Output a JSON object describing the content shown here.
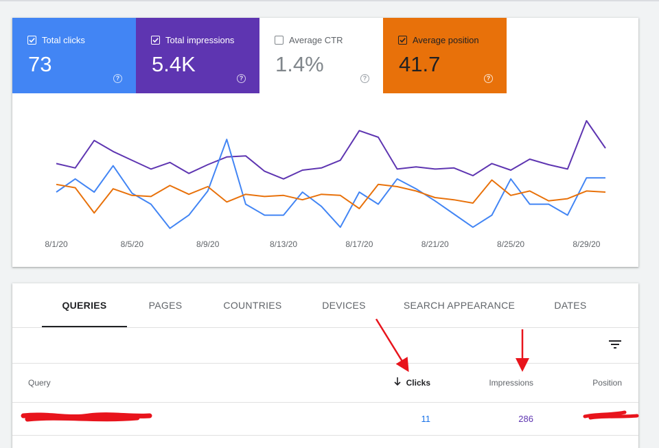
{
  "metrics": [
    {
      "id": "clicks",
      "label": "Total clicks",
      "value": "73",
      "checked": true,
      "color": "#4285f4"
    },
    {
      "id": "impr",
      "label": "Total impressions",
      "value": "5.4K",
      "checked": true,
      "color": "#5e35b1"
    },
    {
      "id": "ctr",
      "label": "Average CTR",
      "value": "1.4%",
      "checked": false,
      "color": "#ffffff"
    },
    {
      "id": "pos",
      "label": "Average position",
      "value": "41.7",
      "checked": true,
      "color": "#e8710a"
    }
  ],
  "help_glyph": "?",
  "chart_data": {
    "type": "line",
    "x_tick_labels": [
      "8/1/20",
      "8/5/20",
      "8/9/20",
      "8/13/20",
      "8/17/20",
      "8/21/20",
      "8/25/20",
      "8/29/20"
    ],
    "x": [
      "8/1",
      "8/2",
      "8/3",
      "8/4",
      "8/5",
      "8/6",
      "8/7",
      "8/8",
      "8/9",
      "8/10",
      "8/11",
      "8/12",
      "8/13",
      "8/14",
      "8/15",
      "8/16",
      "8/17",
      "8/18",
      "8/19",
      "8/20",
      "8/21",
      "8/22",
      "8/23",
      "8/24",
      "8/25",
      "8/26",
      "8/27",
      "8/28",
      "8/29",
      "8/30"
    ],
    "series": [
      {
        "color": "#5e35b1",
        "values": [
          0.61,
          0.57,
          0.82,
          0.72,
          0.64,
          0.56,
          0.62,
          0.52,
          0.6,
          0.67,
          0.68,
          0.54,
          0.47,
          0.55,
          0.57,
          0.64,
          0.91,
          0.85,
          0.56,
          0.58,
          0.56,
          0.57,
          0.5,
          0.61,
          0.55,
          0.65,
          0.6,
          0.56,
          1.0,
          0.75
        ]
      },
      {
        "color": "#4285f4",
        "values": [
          0.35,
          0.47,
          0.35,
          0.59,
          0.34,
          0.24,
          0.02,
          0.14,
          0.36,
          0.83,
          0.24,
          0.14,
          0.14,
          0.35,
          0.22,
          0.03,
          0.35,
          0.24,
          0.47,
          0.38,
          0.27,
          0.15,
          0.03,
          0.14,
          0.47,
          0.24,
          0.24,
          0.14,
          0.48,
          0.48
        ]
      },
      {
        "color": "#e8710a",
        "values": [
          0.42,
          0.39,
          0.16,
          0.38,
          0.32,
          0.31,
          0.41,
          0.33,
          0.4,
          0.26,
          0.33,
          0.31,
          0.32,
          0.28,
          0.33,
          0.32,
          0.2,
          0.42,
          0.4,
          0.36,
          0.3,
          0.28,
          0.25,
          0.46,
          0.32,
          0.36,
          0.27,
          0.29,
          0.36,
          0.35
        ]
      }
    ]
  },
  "tabs": [
    "QUERIES",
    "PAGES",
    "COUNTRIES",
    "DEVICES",
    "SEARCH APPEARANCE",
    "DATES"
  ],
  "table": {
    "columns": {
      "query": "Query",
      "clicks": "Clicks",
      "impressions": "Impressions",
      "position": "Position"
    },
    "rows": [
      {
        "clicks": "11",
        "impressions": "286"
      }
    ]
  }
}
